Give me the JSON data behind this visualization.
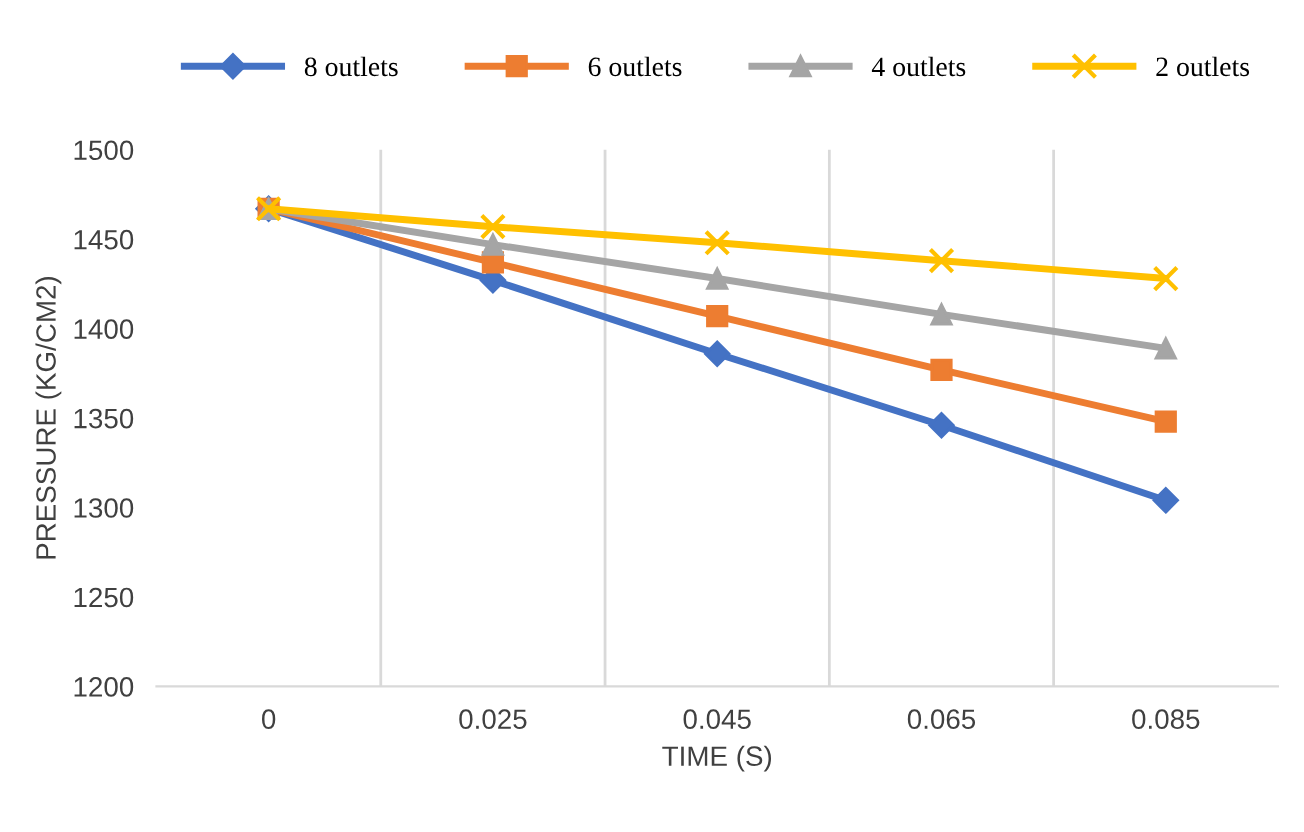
{
  "chart_data": {
    "type": "line",
    "xlabel": "TIME (S)",
    "ylabel": "PRESSURE (KG/CM2)",
    "categories": [
      "0",
      "0.025",
      "0.045",
      "0.065",
      "0.085"
    ],
    "ylim": [
      1200,
      1500
    ],
    "yticks": [
      1200,
      1250,
      1300,
      1350,
      1400,
      1450,
      1500
    ],
    "grid": "x",
    "legend": "top",
    "line_style": "solid",
    "series": [
      {
        "name": "8 outlets",
        "color": "#4472c4",
        "marker": "diamond",
        "values": [
          1467,
          1427,
          1386,
          1346,
          1304
        ]
      },
      {
        "name": "6 outlets",
        "color": "#ed7d31",
        "marker": "square",
        "values": [
          1467,
          1437,
          1407,
          1377,
          1348
        ]
      },
      {
        "name": "4 outlets",
        "color": "#a5a5a5",
        "marker": "triangle",
        "values": [
          1467,
          1447,
          1428,
          1408,
          1389
        ]
      },
      {
        "name": "2 outlets",
        "color": "#ffc000",
        "marker": "cross",
        "values": [
          1467,
          1457,
          1448,
          1438,
          1428
        ]
      }
    ]
  }
}
